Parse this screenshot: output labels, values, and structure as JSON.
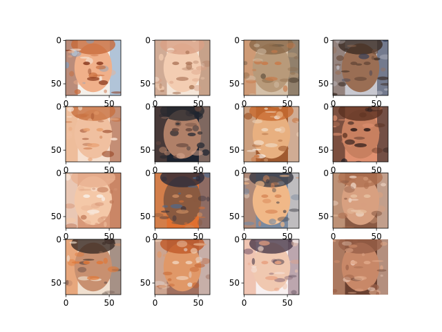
{
  "figure": {
    "background": "#ffffff"
  },
  "chart_data": {
    "type": "image-grid",
    "title": "",
    "rows": 4,
    "cols": 4,
    "image_size": [
      64,
      64
    ],
    "x_ticks": [
      0,
      50
    ],
    "y_ticks": [
      0,
      50
    ],
    "panels": [
      {
        "id": 0,
        "y_ticks": [
          "0",
          "50"
        ],
        "x_ticks": [
          "0",
          "50"
        ],
        "palette": [
          "#f0b08a",
          "#c86a3a",
          "#8a3a1e",
          "#f4f0ea",
          "#7aa0c8"
        ],
        "show_y": true,
        "show_x": true
      },
      {
        "id": 1,
        "y_ticks": [
          "0",
          "50"
        ],
        "x_ticks": [
          "0",
          "50"
        ],
        "palette": [
          "#f3cdb2",
          "#d9a084",
          "#b07a5e",
          "#f5e6d8",
          "#a06a4a"
        ],
        "show_y": true,
        "show_x": true
      },
      {
        "id": 2,
        "y_ticks": [
          "0",
          "50"
        ],
        "x_ticks": [
          "0",
          "50"
        ],
        "palette": [
          "#b89a7a",
          "#8a6848",
          "#c87a4a",
          "#d4c0a8",
          "#5a4a3a"
        ],
        "show_y": true,
        "show_x": true
      },
      {
        "id": 3,
        "y_ticks": [
          "0",
          "50"
        ],
        "x_ticks": [
          "0",
          "50"
        ],
        "palette": [
          "#9a6e54",
          "#3a2a22",
          "#6a4a3a",
          "#c8c8d0",
          "#2e3a58"
        ],
        "show_y": true,
        "show_x": true
      },
      {
        "id": 4,
        "y_ticks": [
          "0",
          "50"
        ],
        "x_ticks": [
          "0",
          "50"
        ],
        "palette": [
          "#f0c0a0",
          "#c87040",
          "#e8a070",
          "#f6e0d0",
          "#9a4a2a"
        ],
        "show_y": true,
        "show_x": true
      },
      {
        "id": 5,
        "y_ticks": [
          "0",
          "50"
        ],
        "x_ticks": [
          "0",
          "50"
        ],
        "palette": [
          "#b08068",
          "#2a2a30",
          "#6a4a40",
          "#1e2430",
          "#d0a088"
        ],
        "show_y": true,
        "show_x": true
      },
      {
        "id": 6,
        "y_ticks": [
          "0",
          "50"
        ],
        "x_ticks": [
          "0",
          "50"
        ],
        "palette": [
          "#e8b080",
          "#c86a30",
          "#f0d8c0",
          "#a05a30",
          "#f8f0e8"
        ],
        "show_y": true,
        "show_x": true
      },
      {
        "id": 7,
        "y_ticks": [
          "0",
          "50"
        ],
        "x_ticks": [
          "0",
          "50"
        ],
        "palette": [
          "#c88060",
          "#5a3020",
          "#2a1a18",
          "#e09070",
          "#1a1a22"
        ],
        "show_y": true,
        "show_x": true
      },
      {
        "id": 8,
        "y_ticks": [
          "0",
          "50"
        ],
        "x_ticks": [
          "0",
          "50"
        ],
        "palette": [
          "#f4c8a8",
          "#e8b090",
          "#f8eee6",
          "#d89878",
          "#c07858"
        ],
        "show_y": true,
        "show_x": true
      },
      {
        "id": 9,
        "y_ticks": [
          "0",
          "50"
        ],
        "x_ticks": [
          "0",
          "50"
        ],
        "palette": [
          "#8a5a40",
          "#2a2a3a",
          "#c88a60",
          "#e07030",
          "#4a6a90"
        ],
        "show_y": true,
        "show_x": true
      },
      {
        "id": 10,
        "y_ticks": [
          "0",
          "50"
        ],
        "x_ticks": [
          "0",
          "50"
        ],
        "palette": [
          "#f0b888",
          "#3a3a44",
          "#d88858",
          "#7a8aa0",
          "#f8e8d8"
        ],
        "show_y": true,
        "show_x": true
      },
      {
        "id": 11,
        "y_ticks": [
          "0",
          "50"
        ],
        "x_ticks": [
          "0",
          "50"
        ],
        "palette": [
          "#d8a080",
          "#b07050",
          "#e8c0a0",
          "#8a5a44",
          "#f0d8c8"
        ],
        "show_y": true,
        "show_x": true
      },
      {
        "id": 12,
        "y_ticks": [
          "0",
          "50"
        ],
        "x_ticks": [
          "0",
          "50"
        ],
        "palette": [
          "#c89070",
          "#3a2a24",
          "#e07838",
          "#f0e0d0",
          "#6a5048"
        ],
        "show_y": true,
        "show_x": true
      },
      {
        "id": 13,
        "y_ticks": [
          "0",
          "50"
        ],
        "x_ticks": [
          "0",
          "50"
        ],
        "palette": [
          "#e09868",
          "#c05a28",
          "#f0d0b8",
          "#a07060",
          "#e8e4e4"
        ],
        "show_y": true,
        "show_x": true
      },
      {
        "id": 14,
        "y_ticks": [
          "0",
          "50"
        ],
        "x_ticks": [
          "0",
          "50"
        ],
        "palette": [
          "#f0c8b0",
          "#4a3a4a",
          "#e8a080",
          "#f8f0f0",
          "#8a6a78"
        ],
        "show_y": true,
        "show_x": true
      },
      {
        "id": 15,
        "y_ticks": [],
        "x_ticks": [],
        "palette": [
          "#c88868",
          "#9a6048",
          "#e0a888",
          "#6a4030",
          "#f0d0c0"
        ],
        "show_y": false,
        "show_x": false
      }
    ]
  }
}
